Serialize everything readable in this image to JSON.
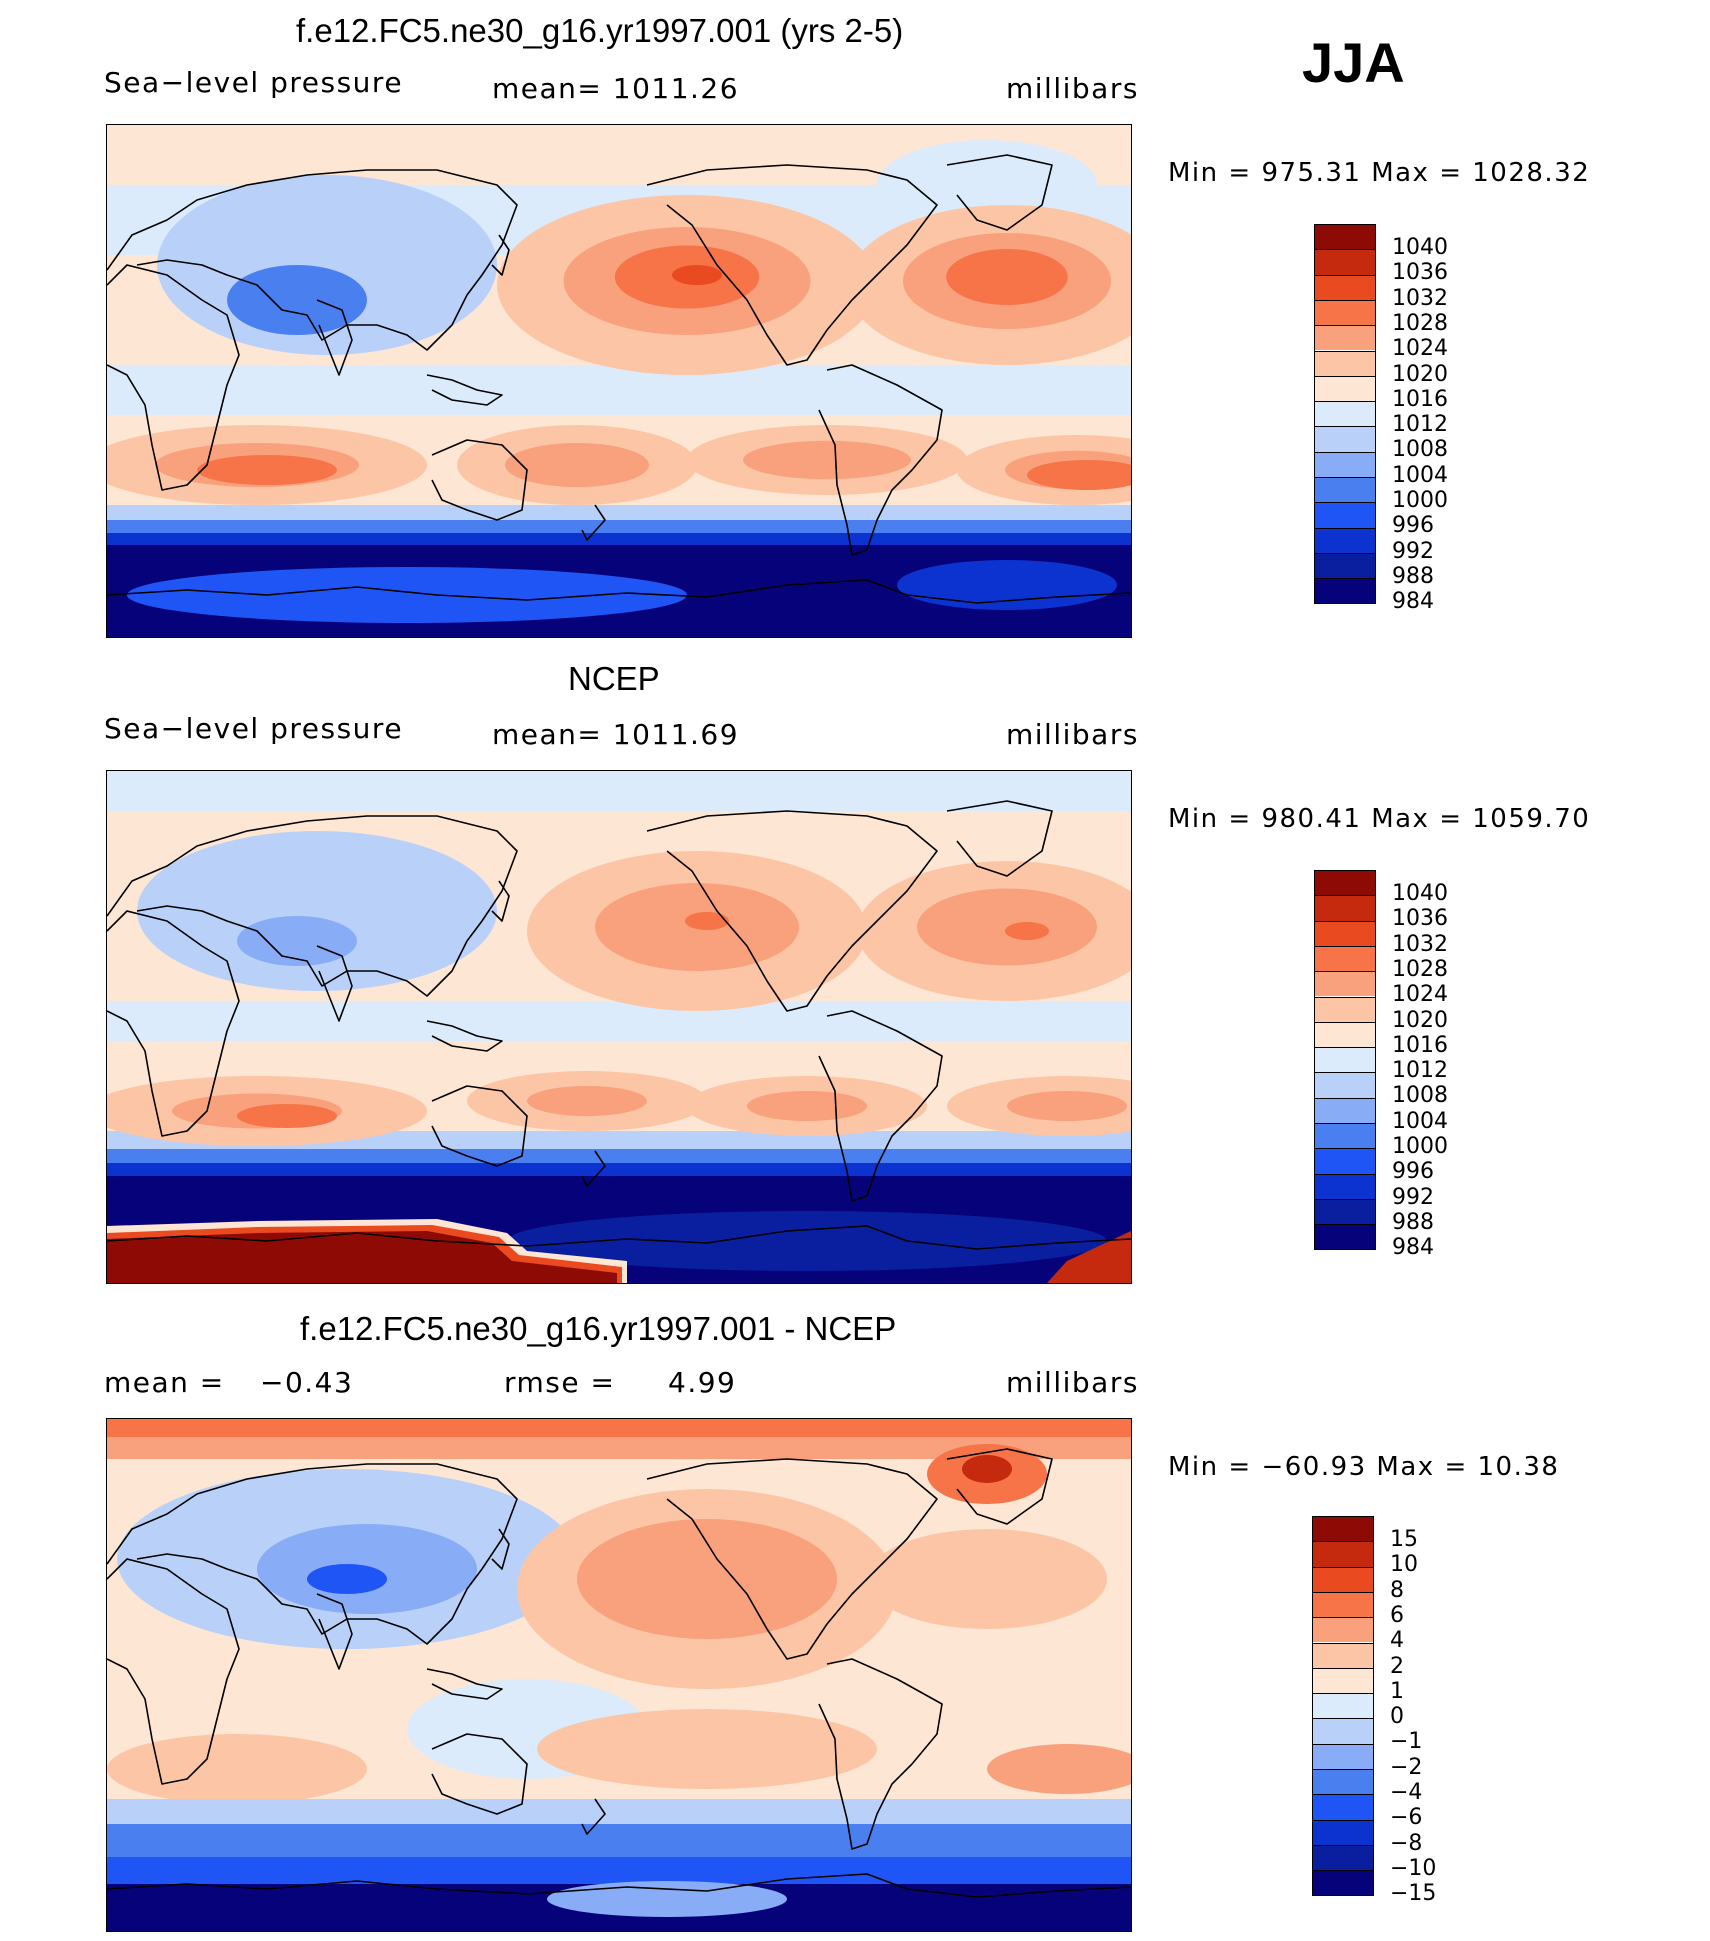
{
  "season": "JJA",
  "colors": {
    "abs_scale": [
      "#06037a",
      "#0a1fa0",
      "#0c33d0",
      "#1f55f5",
      "#4a7ff0",
      "#88acf6",
      "#b9d1f9",
      "#dcebfb",
      "#fde6d4",
      "#fcc6a6",
      "#f9a07c",
      "#f67448",
      "#ea4a1f",
      "#c52a0e",
      "#8e0b05"
    ],
    "diff_scale": [
      "#06037a",
      "#0a1fa0",
      "#0c33d0",
      "#1f55f5",
      "#4a7ff0",
      "#88acf6",
      "#b9d1f9",
      "#dcebfb",
      "#fde6d4",
      "#fcc6a6",
      "#f9a07c",
      "#f67448",
      "#ea4a1f",
      "#c52a0e",
      "#8e0b05"
    ],
    "land_outline": "#000000"
  },
  "panels": [
    {
      "title": "f.e12.FC5.ne30_g16.yr1997.001 (yrs 2-5)",
      "left_label": "Sea−level pressure",
      "center_label": "mean=  1011.26",
      "right_label": "millibars",
      "minmax": "Min  =  975.31  Max  =  1028.32"
    },
    {
      "title": "NCEP",
      "left_label": "Sea−level pressure",
      "center_label": "mean=  1011.69",
      "right_label": "millibars",
      "minmax": "Min  =  980.41  Max  =  1059.70"
    },
    {
      "title": "f.e12.FC5.ne30_g16.yr1997.001 - NCEP",
      "left_label": "mean  =",
      "mean_value": "−0.43",
      "center_label": "rmse  =",
      "rmse_value": "4.99",
      "right_label": "millibars",
      "minmax": "Min  =  −60.93  Max  =    10.38"
    }
  ],
  "chart_data": [
    {
      "type": "heatmap",
      "title": "f.e12.FC5.ne30_g16.yr1997.001 (yrs 2-5)",
      "variable": "Sea-level pressure",
      "units": "millibars",
      "mean": 1011.26,
      "min": 975.31,
      "max": 1028.32,
      "colorbar_levels": [
        "1040",
        "1036",
        "1032",
        "1028",
        "1024",
        "1020",
        "1016",
        "1012",
        "1008",
        "1004",
        "1000",
        "996",
        "992",
        "988",
        "984"
      ],
      "features": [
        {
          "name": "north-pacific-high",
          "value": 1028
        },
        {
          "name": "north-atlantic-high",
          "value": 1028
        },
        {
          "name": "south-indian-high",
          "value": 1024
        },
        {
          "name": "south-pacific-high",
          "value": 1020
        },
        {
          "name": "south-atlantic-high",
          "value": 1024
        },
        {
          "name": "asian-low",
          "value": 1000
        },
        {
          "name": "southern-ocean-trough",
          "value": 984
        }
      ]
    },
    {
      "type": "heatmap",
      "title": "NCEP",
      "variable": "Sea-level pressure",
      "units": "millibars",
      "mean": 1011.69,
      "min": 980.41,
      "max": 1059.7,
      "colorbar_levels": [
        "1040",
        "1036",
        "1032",
        "1028",
        "1024",
        "1020",
        "1016",
        "1012",
        "1008",
        "1004",
        "1000",
        "996",
        "992",
        "988",
        "984"
      ],
      "features": [
        {
          "name": "north-pacific-high",
          "value": 1024
        },
        {
          "name": "north-atlantic-high",
          "value": 1024
        },
        {
          "name": "south-indian-high",
          "value": 1024
        },
        {
          "name": "asian-low",
          "value": 1004
        },
        {
          "name": "southern-ocean-trough",
          "value": 984
        },
        {
          "name": "antarctic-plateau",
          "value": 1040
        }
      ]
    },
    {
      "type": "heatmap",
      "title": "f.e12.FC5.ne30_g16.yr1997.001 - NCEP",
      "variable": "Sea-level pressure difference",
      "units": "millibars",
      "mean": -0.43,
      "rmse": 4.99,
      "min": -60.93,
      "max": 10.38,
      "colorbar_levels": [
        "15",
        "10",
        "8",
        "6",
        "4",
        "2",
        "1",
        "0",
        "−1",
        "−2",
        "−4",
        "−6",
        "−8",
        "−10",
        "−15"
      ],
      "features": [
        {
          "name": "greenland-anomaly",
          "value": 8
        },
        {
          "name": "north-pacific-anomaly",
          "value": 4
        },
        {
          "name": "eurasia-anomaly",
          "value": -2
        },
        {
          "name": "southern-ocean-anomaly",
          "value": -6
        },
        {
          "name": "antarctica-anomaly",
          "value": -15
        }
      ]
    }
  ]
}
